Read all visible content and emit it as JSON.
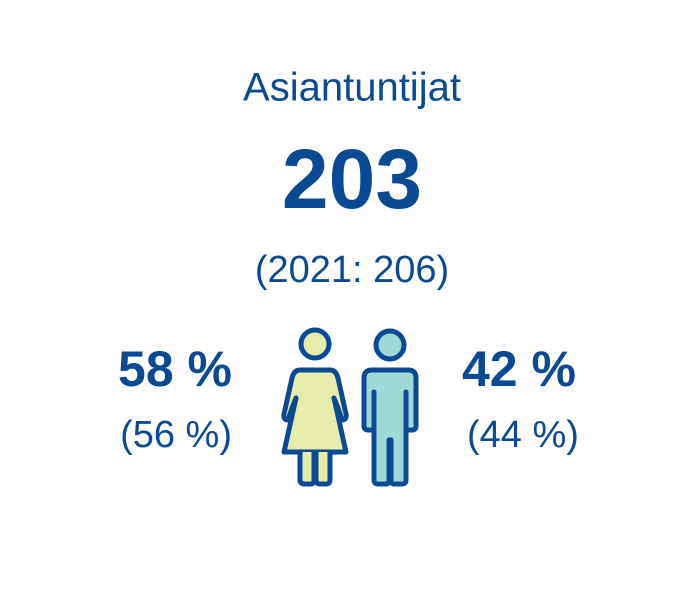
{
  "title": "Asiantuntijat",
  "total": {
    "value": "203",
    "previous": "(2021: 206)"
  },
  "women": {
    "share": "58 %",
    "previous": "(56 %)"
  },
  "men": {
    "share": "42 %",
    "previous": "(44 %)"
  }
}
